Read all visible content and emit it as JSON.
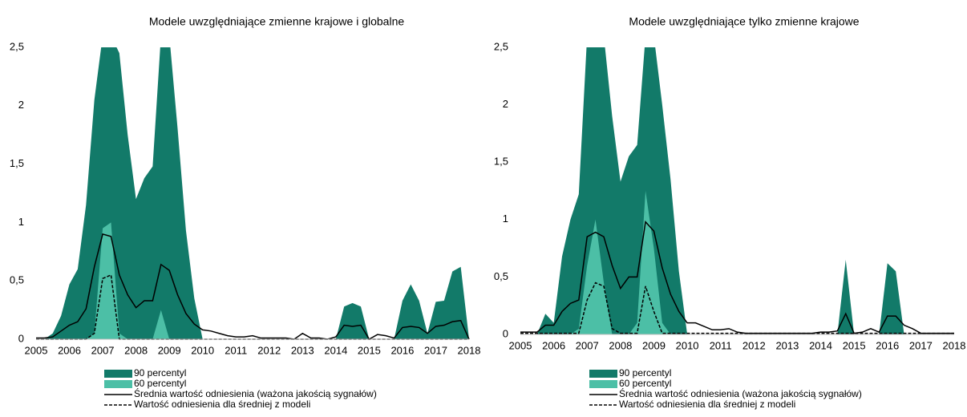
{
  "chart_data": [
    {
      "type": "area",
      "title": "Modele uwzględniające zmienne krajowe i globalne",
      "x": [
        2005,
        2005.25,
        2005.5,
        2005.75,
        2006,
        2006.25,
        2006.5,
        2006.75,
        2007,
        2007.25,
        2007.5,
        2007.75,
        2008,
        2008.25,
        2008.5,
        2008.75,
        2009,
        2009.25,
        2009.5,
        2009.75,
        2010,
        2010.25,
        2010.5,
        2010.75,
        2011,
        2011.25,
        2011.5,
        2011.75,
        2012,
        2012.25,
        2012.5,
        2012.75,
        2013,
        2013.25,
        2013.5,
        2013.75,
        2014,
        2014.25,
        2014.5,
        2014.75,
        2015,
        2015.25,
        2015.5,
        2015.75,
        2016,
        2016.25,
        2016.5,
        2016.75,
        2017,
        2017.25,
        2017.5,
        2017.75,
        2018
      ],
      "xlim": [
        2005,
        2018
      ],
      "xticks": [
        2005,
        2006,
        2007,
        2008,
        2009,
        2010,
        2011,
        2012,
        2013,
        2014,
        2015,
        2016,
        2017,
        2018
      ],
      "ylim": [
        0,
        2.5
      ],
      "yticks": [
        0,
        {
          "value": 0.5,
          "label": "0,5"
        },
        1,
        {
          "value": 1.5,
          "label": "1,5"
        },
        2,
        {
          "value": 2.5,
          "label": "2,5"
        }
      ],
      "series": [
        {
          "name": "90 percentyl",
          "kind": "area",
          "color": "#127a69",
          "values": [
            0,
            0,
            0.05,
            0.2,
            0.47,
            0.6,
            1.15,
            2.05,
            2.6,
            2.6,
            2.45,
            1.75,
            1.2,
            1.38,
            1.48,
            2.6,
            2.6,
            1.8,
            0.93,
            0.35,
            0,
            0,
            0,
            0,
            0,
            0,
            0,
            0,
            0,
            0,
            0,
            0,
            0,
            0,
            0,
            0,
            0,
            0.28,
            0.31,
            0.28,
            0,
            0,
            0,
            0,
            0.33,
            0.47,
            0.33,
            0.05,
            0.32,
            0.33,
            0.58,
            0.62,
            0
          ]
        },
        {
          "name": "60 percentyl",
          "kind": "area",
          "color": "#4cbfa6",
          "values": [
            0,
            0,
            0,
            0,
            0,
            0,
            0,
            0.05,
            0.95,
            1.0,
            0.05,
            0,
            0,
            0,
            0,
            0.25,
            0,
            0,
            0,
            0,
            0,
            0,
            0,
            0,
            0,
            0,
            0,
            0,
            0,
            0,
            0,
            0,
            0,
            0,
            0,
            0,
            0,
            0,
            0,
            0,
            0,
            0,
            0,
            0,
            0,
            0,
            0,
            0,
            0,
            0,
            0,
            0,
            0
          ]
        },
        {
          "name": "Średnia wartość odniesienia (ważona jakością sygnałów)",
          "kind": "line",
          "color": "#000000",
          "dashed": false,
          "values": [
            0.01,
            0.01,
            0.02,
            0.07,
            0.12,
            0.15,
            0.26,
            0.62,
            0.9,
            0.88,
            0.55,
            0.38,
            0.27,
            0.33,
            0.33,
            0.64,
            0.59,
            0.38,
            0.22,
            0.13,
            0.08,
            0.07,
            0.05,
            0.03,
            0.02,
            0.02,
            0.03,
            0.01,
            0.01,
            0.01,
            0.01,
            0,
            0.05,
            0.01,
            0.01,
            0,
            0.02,
            0.12,
            0.11,
            0.12,
            0,
            0.04,
            0.03,
            0.01,
            0.1,
            0.11,
            0.1,
            0.05,
            0.11,
            0.12,
            0.15,
            0.16,
            0
          ]
        },
        {
          "name": "Wartość odniesienia dla średniej z modeli",
          "kind": "line",
          "color": "#000000",
          "dashed": true,
          "values": [
            0,
            0,
            0,
            0,
            0,
            0,
            0,
            0.05,
            0.52,
            0.55,
            0,
            0,
            0,
            0,
            0,
            0,
            0,
            0,
            0,
            0,
            0,
            0,
            0,
            0,
            0,
            0,
            0,
            0,
            0,
            0,
            0,
            0,
            0,
            0,
            0,
            0,
            0,
            0,
            0,
            0,
            0,
            0,
            0,
            0,
            0,
            0,
            0,
            0,
            0,
            0,
            0,
            0,
            0
          ]
        }
      ]
    },
    {
      "type": "area",
      "title": "Modele uwzględniające tylko zmienne krajowe",
      "x": [
        2005,
        2005.25,
        2005.5,
        2005.75,
        2006,
        2006.25,
        2006.5,
        2006.75,
        2007,
        2007.25,
        2007.5,
        2007.75,
        2008,
        2008.25,
        2008.5,
        2008.75,
        2009,
        2009.25,
        2009.5,
        2009.75,
        2010,
        2010.25,
        2010.5,
        2010.75,
        2011,
        2011.25,
        2011.5,
        2011.75,
        2012,
        2012.25,
        2012.5,
        2012.75,
        2013,
        2013.25,
        2013.5,
        2013.75,
        2014,
        2014.25,
        2014.5,
        2014.75,
        2015,
        2015.25,
        2015.5,
        2015.75,
        2016,
        2016.25,
        2016.5,
        2016.75,
        2017,
        2017.25,
        2017.5,
        2017.75,
        2018
      ],
      "xlim": [
        2005,
        2018
      ],
      "xticks": [
        2005,
        2006,
        2007,
        2008,
        2009,
        2010,
        2011,
        2012,
        2013,
        2014,
        2015,
        2016,
        2017,
        2018
      ],
      "ylim": [
        0,
        2.5
      ],
      "yticks": [
        0,
        {
          "value": 0.5,
          "label": "0,5"
        },
        1,
        {
          "value": 1.5,
          "label": "1,5"
        },
        2,
        {
          "value": 2.5,
          "label": "2,5"
        }
      ],
      "series": [
        {
          "name": "90 percentyl",
          "kind": "area",
          "color": "#127a69",
          "values": [
            0,
            0,
            0,
            0.18,
            0.1,
            0.68,
            1.0,
            1.22,
            2.6,
            2.6,
            2.6,
            1.9,
            1.33,
            1.55,
            1.65,
            2.6,
            2.6,
            2.0,
            1.35,
            0.55,
            0,
            0,
            0,
            0,
            0,
            0,
            0,
            0,
            0,
            0,
            0,
            0,
            0,
            0,
            0,
            0,
            0,
            0,
            0,
            0.65,
            0,
            0,
            0,
            0,
            0.62,
            0.55,
            0,
            0,
            0,
            0,
            0,
            0,
            0
          ]
        },
        {
          "name": "60 percentyl",
          "kind": "area",
          "color": "#4cbfa6",
          "values": [
            0,
            0,
            0,
            0,
            0,
            0,
            0,
            0.05,
            0.6,
            1.0,
            0.45,
            0,
            0,
            0,
            0.1,
            1.25,
            0.75,
            0.1,
            0,
            0,
            0,
            0,
            0,
            0,
            0,
            0,
            0,
            0,
            0,
            0,
            0,
            0,
            0,
            0,
            0,
            0,
            0,
            0,
            0,
            0,
            0,
            0,
            0,
            0,
            0,
            0,
            0,
            0,
            0,
            0,
            0,
            0,
            0
          ]
        },
        {
          "name": "Średnia wartość odniesienia (ważona jakością sygnałów)",
          "kind": "line",
          "color": "#000000",
          "dashed": false,
          "values": [
            0.02,
            0.02,
            0.02,
            0.08,
            0.08,
            0.2,
            0.27,
            0.3,
            0.85,
            0.89,
            0.85,
            0.6,
            0.4,
            0.5,
            0.5,
            0.98,
            0.9,
            0.58,
            0.35,
            0.2,
            0.1,
            0.1,
            0.07,
            0.04,
            0.04,
            0.05,
            0.02,
            0.01,
            0.01,
            0.01,
            0.01,
            0.01,
            0.01,
            0.01,
            0.01,
            0.01,
            0.02,
            0.02,
            0.03,
            0.18,
            0.01,
            0.02,
            0.05,
            0.02,
            0.16,
            0.16,
            0.08,
            0.05,
            0.01,
            0.01,
            0.01,
            0.01,
            0.01
          ]
        },
        {
          "name": "Wartość odniesienia dla średniej z modeli",
          "kind": "line",
          "color": "#000000",
          "dashed": true,
          "values": [
            0.01,
            0.01,
            0.01,
            0.01,
            0.01,
            0.01,
            0.01,
            0.01,
            0.3,
            0.45,
            0.42,
            0.05,
            0.01,
            0.01,
            0.01,
            0.42,
            0.2,
            0.01,
            0.01,
            0.01,
            0.01,
            0.01,
            0.01,
            0.01,
            0.01,
            0.01,
            0.01,
            0.01,
            0.01,
            0.01,
            0.01,
            0.01,
            0.01,
            0.01,
            0.01,
            0.01,
            0.01,
            0.01,
            0.01,
            0.01,
            0.01,
            0.01,
            0.01,
            0.01,
            0.01,
            0.01,
            0.01,
            0.01,
            0.01,
            0.01,
            0.01,
            0.01,
            0.01
          ]
        }
      ]
    }
  ]
}
